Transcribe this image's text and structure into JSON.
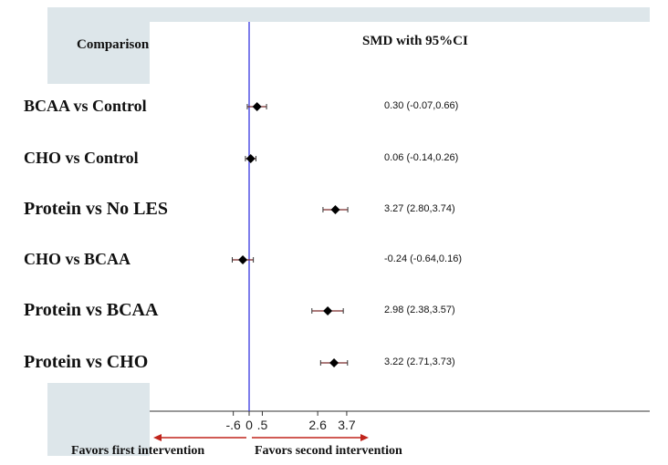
{
  "chart_data": {
    "type": "forest",
    "columns": {
      "left_header": "Comparison",
      "right_header": "SMD with 95%CI"
    },
    "rows": [
      {
        "label": "BCAA vs Control",
        "estimate": 0.3,
        "lower": -0.07,
        "upper": 0.66,
        "ci_text": "0.30 (-0.07,0.66)"
      },
      {
        "label": "CHO vs Control",
        "estimate": 0.06,
        "lower": -0.14,
        "upper": 0.26,
        "ci_text": "0.06 (-0.14,0.26)"
      },
      {
        "label": "Protein  vs No LES",
        "estimate": 3.27,
        "lower": 2.8,
        "upper": 3.74,
        "ci_text": "3.27 (2.80,3.74)"
      },
      {
        "label": "CHO vs BCAA",
        "estimate": -0.24,
        "lower": -0.64,
        "upper": 0.16,
        "ci_text": "-0.24 (-0.64,0.16)"
      },
      {
        "label": "Protein  vs BCAA",
        "estimate": 2.98,
        "lower": 2.38,
        "upper": 3.57,
        "ci_text": "2.98 (2.38,3.57)"
      },
      {
        "label": "Protein  vs CHO",
        "estimate": 3.22,
        "lower": 2.71,
        "upper": 3.73,
        "ci_text": "3.22 (2.71,3.73)"
      }
    ],
    "x_ticks": [
      {
        "value": -0.6,
        "label": "-.6"
      },
      {
        "value": 0,
        "label": "0"
      },
      {
        "value": 0.5,
        "label": ".5"
      },
      {
        "value": 2.6,
        "label": "2.6"
      },
      {
        "value": 3.7,
        "label": "3.7"
      }
    ],
    "reference_line": 0,
    "annotations": {
      "favors_left": "Favors first intervention",
      "favors_right": "Favors second intervention"
    },
    "colors": {
      "reference_line": "#3a3ae0",
      "marker": "#000000",
      "arrow": "#c0241c",
      "panel_background": "#dde6ea"
    }
  }
}
